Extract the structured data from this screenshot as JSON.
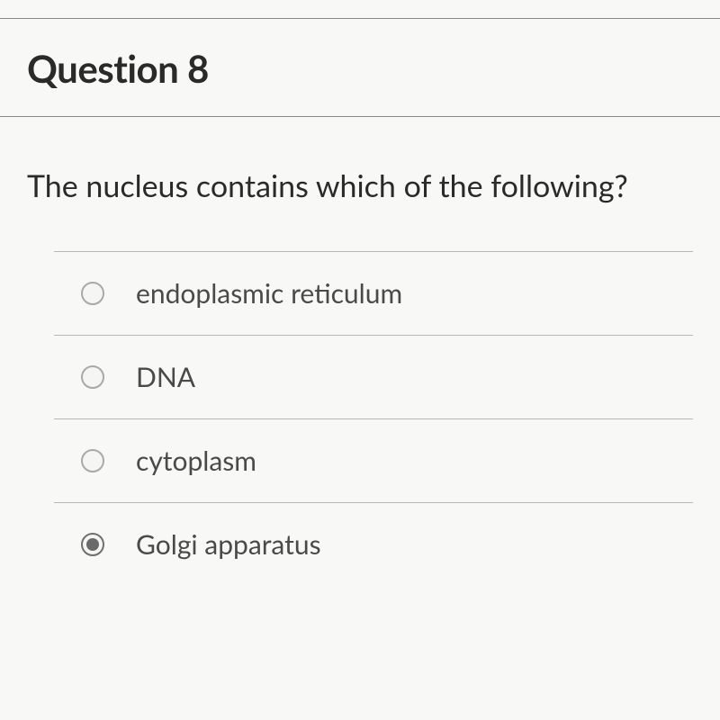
{
  "question": {
    "title": "Question 8",
    "prompt": "The nucleus contains which of the following?",
    "options": [
      {
        "label": "endoplasmic reticulum",
        "selected": false
      },
      {
        "label": "DNA",
        "selected": false
      },
      {
        "label": "cytoplasm",
        "selected": false
      },
      {
        "label": "Golgi apparatus",
        "selected": true
      }
    ]
  },
  "colors": {
    "background": "#f8f8f6",
    "text_primary": "#2a2a2a",
    "text_option": "#4a4a48",
    "border": "#888",
    "option_border": "#b8b8b4",
    "radio_border": "#aaa9a6",
    "radio_fill": "#6a6a6a"
  },
  "typography": {
    "title_fontsize": 42,
    "title_weight": 700,
    "prompt_fontsize": 34,
    "option_fontsize": 30
  }
}
